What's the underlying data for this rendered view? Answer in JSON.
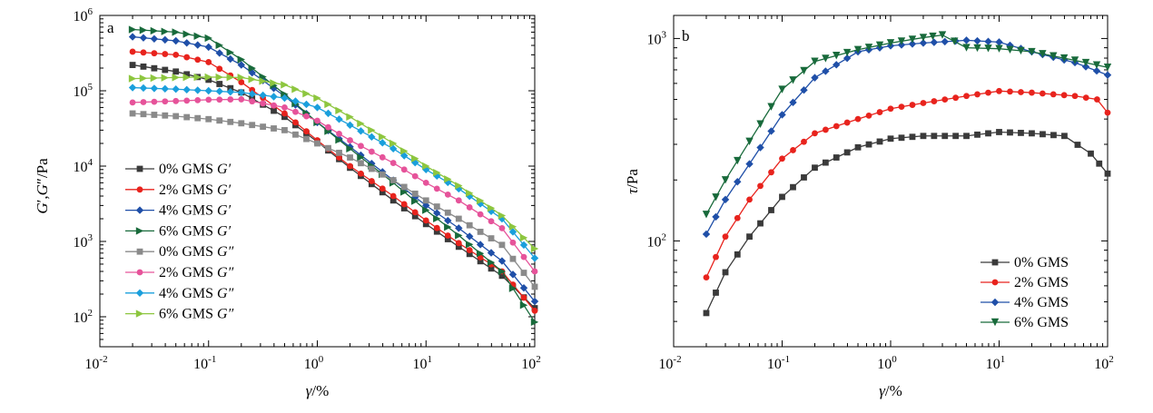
{
  "chart_data": [
    {
      "panel": "a",
      "type": "line",
      "xscale": "log",
      "yscale": "log",
      "xlim": [
        0.01,
        100
      ],
      "ylim": [
        40,
        1000000
      ],
      "x_ticks": [
        0.01,
        0.1,
        1,
        10,
        100
      ],
      "y_ticks": [
        100,
        1000,
        10000,
        100000,
        1000000
      ],
      "xlabel": "γ/%",
      "ylabel": "G′,G″/Pa",
      "legend_position": "lower-left",
      "series": [
        {
          "name": "0% GMS G′",
          "color": "#3a3a3a",
          "marker": "square",
          "points": [
            [
              0.02,
              220000
            ],
            [
              0.05,
              180000
            ],
            [
              0.1,
              140000
            ],
            [
              0.2,
              95000
            ],
            [
              0.5,
              45000
            ],
            [
              1,
              21000
            ],
            [
              2,
              9500
            ],
            [
              5,
              3500
            ],
            [
              10,
              1700
            ],
            [
              20,
              850
            ],
            [
              50,
              350
            ],
            [
              100,
              130
            ]
          ]
        },
        {
          "name": "2% GMS G′",
          "color": "#e8231d",
          "marker": "circle",
          "points": [
            [
              0.02,
              330000
            ],
            [
              0.05,
              300000
            ],
            [
              0.1,
              240000
            ],
            [
              0.2,
              130000
            ],
            [
              0.5,
              50000
            ],
            [
              1,
              22000
            ],
            [
              2,
              10000
            ],
            [
              5,
              4000
            ],
            [
              10,
              1900
            ],
            [
              20,
              950
            ],
            [
              50,
              400
            ],
            [
              100,
              120
            ]
          ]
        },
        {
          "name": "4% GMS G′",
          "color": "#1f4fa8",
          "marker": "diamond",
          "points": [
            [
              0.02,
              520000
            ],
            [
              0.05,
              460000
            ],
            [
              0.1,
              380000
            ],
            [
              0.2,
              220000
            ],
            [
              0.5,
              85000
            ],
            [
              1,
              38000
            ],
            [
              2,
              18000
            ],
            [
              5,
              6500
            ],
            [
              10,
              3000
            ],
            [
              20,
              1500
            ],
            [
              50,
              550
            ],
            [
              100,
              160
            ]
          ]
        },
        {
          "name": "6% GMS G′",
          "color": "#186a3b",
          "marker": "triangle-right",
          "points": [
            [
              0.02,
              650000
            ],
            [
              0.05,
              600000
            ],
            [
              0.1,
              500000
            ],
            [
              0.2,
              260000
            ],
            [
              0.5,
              90000
            ],
            [
              1,
              38000
            ],
            [
              2,
              17000
            ],
            [
              5,
              6000
            ],
            [
              10,
              2600
            ],
            [
              20,
              1200
            ],
            [
              50,
              400
            ],
            [
              100,
              85
            ]
          ]
        },
        {
          "name": "0% GMS G″",
          "color": "#8a8a8a",
          "marker": "square",
          "points": [
            [
              0.02,
              50000
            ],
            [
              0.05,
              46000
            ],
            [
              0.1,
              42000
            ],
            [
              0.2,
              37000
            ],
            [
              0.5,
              30000
            ],
            [
              1,
              20000
            ],
            [
              2,
              13000
            ],
            [
              5,
              6500
            ],
            [
              10,
              3500
            ],
            [
              20,
              2000
            ],
            [
              50,
              900
            ],
            [
              100,
              250
            ]
          ]
        },
        {
          "name": "2% GMS G″",
          "color": "#e6539a",
          "marker": "circle",
          "points": [
            [
              0.02,
              70000
            ],
            [
              0.05,
              73000
            ],
            [
              0.1,
              76000
            ],
            [
              0.2,
              77000
            ],
            [
              0.5,
              60000
            ],
            [
              1,
              40000
            ],
            [
              2,
              22000
            ],
            [
              5,
              11000
            ],
            [
              10,
              6000
            ],
            [
              20,
              3500
            ],
            [
              50,
              1500
            ],
            [
              100,
              400
            ]
          ]
        },
        {
          "name": "4% GMS G″",
          "color": "#1a9fdc",
          "marker": "diamond",
          "points": [
            [
              0.02,
              110000
            ],
            [
              0.05,
              105000
            ],
            [
              0.1,
              100000
            ],
            [
              0.2,
              95000
            ],
            [
              0.5,
              80000
            ],
            [
              1,
              60000
            ],
            [
              2,
              35000
            ],
            [
              5,
              17000
            ],
            [
              10,
              9000
            ],
            [
              20,
              5000
            ],
            [
              50,
              2000
            ],
            [
              100,
              600
            ]
          ]
        },
        {
          "name": "6% GMS G″",
          "color": "#8dc63f",
          "marker": "triangle-right",
          "points": [
            [
              0.02,
              145000
            ],
            [
              0.05,
              150000
            ],
            [
              0.1,
              152000
            ],
            [
              0.2,
              150000
            ],
            [
              0.5,
              120000
            ],
            [
              1,
              80000
            ],
            [
              2,
              45000
            ],
            [
              5,
              20000
            ],
            [
              10,
              10000
            ],
            [
              20,
              5500
            ],
            [
              50,
              2200
            ],
            [
              100,
              800
            ]
          ]
        }
      ]
    },
    {
      "panel": "b",
      "type": "line",
      "xscale": "log",
      "yscale": "log",
      "xlim": [
        0.01,
        100
      ],
      "ylim": [
        30,
        1300
      ],
      "x_ticks": [
        0.01,
        0.1,
        1,
        10,
        100
      ],
      "y_ticks": [
        100,
        1000
      ],
      "xlabel": "γ/%",
      "ylabel": "τ/Pa",
      "legend_position": "lower-right",
      "series": [
        {
          "name": "0% GMS",
          "color": "#3a3a3a",
          "marker": "square",
          "points": [
            [
              0.02,
              44
            ],
            [
              0.03,
              70
            ],
            [
              0.05,
              105
            ],
            [
              0.1,
              165
            ],
            [
              0.2,
              230
            ],
            [
              0.5,
              290
            ],
            [
              1,
              320
            ],
            [
              2,
              330
            ],
            [
              5,
              330
            ],
            [
              10,
              345
            ],
            [
              20,
              340
            ],
            [
              40,
              330
            ],
            [
              70,
              270
            ],
            [
              100,
              215
            ]
          ]
        },
        {
          "name": "2% GMS",
          "color": "#e8231d",
          "marker": "circle",
          "points": [
            [
              0.02,
              66
            ],
            [
              0.03,
              105
            ],
            [
              0.05,
              160
            ],
            [
              0.1,
              255
            ],
            [
              0.2,
              340
            ],
            [
              0.5,
              400
            ],
            [
              1,
              450
            ],
            [
              2,
              480
            ],
            [
              5,
              520
            ],
            [
              10,
              550
            ],
            [
              20,
              540
            ],
            [
              50,
              520
            ],
            [
              80,
              500
            ],
            [
              100,
              430
            ]
          ]
        },
        {
          "name": "4% GMS",
          "color": "#1f4fa8",
          "marker": "diamond",
          "points": [
            [
              0.02,
              108
            ],
            [
              0.03,
              160
            ],
            [
              0.05,
              240
            ],
            [
              0.1,
              420
            ],
            [
              0.2,
              640
            ],
            [
              0.5,
              860
            ],
            [
              1,
              920
            ],
            [
              2,
              950
            ],
            [
              5,
              980
            ],
            [
              10,
              960
            ],
            [
              20,
              860
            ],
            [
              50,
              760
            ],
            [
              100,
              660
            ]
          ]
        },
        {
          "name": "6% GMS",
          "color": "#186a3b",
          "marker": "triangle-down",
          "points": [
            [
              0.02,
              135
            ],
            [
              0.03,
              200
            ],
            [
              0.05,
              310
            ],
            [
              0.1,
              560
            ],
            [
              0.2,
              770
            ],
            [
              0.5,
              880
            ],
            [
              1,
              950
            ],
            [
              2,
              1010
            ],
            [
              3,
              1040
            ],
            [
              5,
              900
            ],
            [
              10,
              890
            ],
            [
              20,
              860
            ],
            [
              50,
              780
            ],
            [
              100,
              720
            ]
          ]
        }
      ]
    }
  ]
}
